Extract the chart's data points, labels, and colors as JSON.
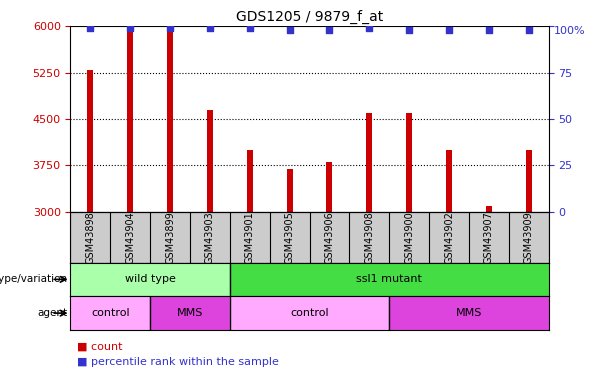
{
  "title": "GDS1205 / 9879_f_at",
  "samples": [
    "GSM43898",
    "GSM43904",
    "GSM43899",
    "GSM43903",
    "GSM43901",
    "GSM43905",
    "GSM43906",
    "GSM43908",
    "GSM43900",
    "GSM43902",
    "GSM43907",
    "GSM43909"
  ],
  "counts": [
    5300,
    5900,
    5950,
    4650,
    4000,
    3700,
    3800,
    4600,
    4600,
    4000,
    3100,
    4000
  ],
  "percentiles": [
    99,
    99,
    99,
    99,
    99,
    98,
    98,
    99,
    98,
    98,
    98,
    98
  ],
  "ymin": 3000,
  "ymax": 6000,
  "yticks_left": [
    3000,
    3750,
    4500,
    5250,
    6000
  ],
  "yticks_right": [
    0,
    25,
    50,
    75,
    100
  ],
  "bar_color": "#cc0000",
  "dot_color": "#3333cc",
  "bar_width": 0.15,
  "genotype_groups": [
    {
      "label": "wild type",
      "start": 0,
      "end": 3,
      "color": "#aaffaa"
    },
    {
      "label": "ssl1 mutant",
      "start": 4,
      "end": 11,
      "color": "#44dd44"
    }
  ],
  "agent_groups": [
    {
      "label": "control",
      "start": 0,
      "end": 1,
      "color": "#ffaaff"
    },
    {
      "label": "MMS",
      "start": 2,
      "end": 3,
      "color": "#dd44dd"
    },
    {
      "label": "control",
      "start": 4,
      "end": 7,
      "color": "#ffaaff"
    },
    {
      "label": "MMS",
      "start": 8,
      "end": 11,
      "color": "#dd44dd"
    }
  ],
  "legend_count_color": "#cc0000",
  "legend_pct_color": "#3333cc",
  "legend_count_label": "count",
  "legend_pct_label": "percentile rank within the sample",
  "label_genotype": "genotype/variation",
  "label_agent": "agent",
  "bg_sample": "#cccccc",
  "title_fontsize": 10,
  "tick_fontsize": 8,
  "sample_fontsize": 7,
  "row_fontsize": 8
}
